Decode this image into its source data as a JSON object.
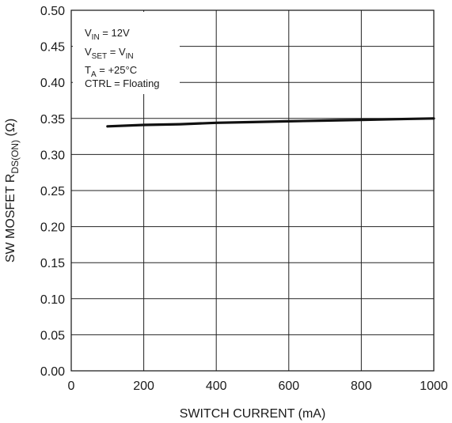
{
  "chart_data": {
    "type": "line",
    "title": "",
    "xlabel": "SWITCH CURRENT (mA)",
    "ylabel": {
      "main": "SW MOSFET R",
      "subscript": "DS(ON)",
      "unit": " (Ω)"
    },
    "xlim": [
      0,
      1000
    ],
    "ylim": [
      0.0,
      0.5
    ],
    "xticks": [
      0,
      200,
      400,
      600,
      800,
      1000
    ],
    "xtick_labels": [
      "0",
      "200",
      "400",
      "600",
      "800",
      "1000"
    ],
    "yticks": [
      0.0,
      0.05,
      0.1,
      0.15,
      0.2,
      0.25,
      0.3,
      0.35,
      0.4,
      0.45,
      0.5
    ],
    "ytick_labels": [
      "0.00",
      "0.05",
      "0.10",
      "0.15",
      "0.20",
      "0.25",
      "0.30",
      "0.35",
      "0.40",
      "0.45",
      "0.50"
    ],
    "grid": true,
    "series": [
      {
        "name": "",
        "x": [
          100,
          200,
          300,
          400,
          500,
          600,
          700,
          800,
          900,
          1000
        ],
        "y": [
          0.339,
          0.341,
          0.342,
          0.344,
          0.345,
          0.346,
          0.347,
          0.348,
          0.349,
          0.35
        ]
      }
    ],
    "annotations": [
      {
        "main": "V",
        "sub": "IN",
        "tail": " = 12V"
      },
      {
        "main": "V",
        "sub": "SET",
        "tail": " = V",
        "sub2": "IN"
      },
      {
        "main": "T",
        "sub": "A",
        "tail": " = +25°C"
      },
      {
        "main": "CTRL = Floating",
        "sub": "",
        "tail": ""
      }
    ],
    "colors": {
      "line": "#111111",
      "grid": "#222222",
      "background": "#ffffff"
    }
  }
}
